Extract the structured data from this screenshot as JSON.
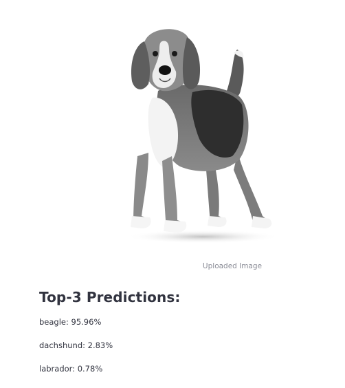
{
  "uploaded_image": {
    "subject": "beagle-dog-photo",
    "caption": "Uploaded Image"
  },
  "predictions": {
    "heading": "Top-3 Predictions:",
    "items": [
      {
        "text": "beagle: 95.96%"
      },
      {
        "text": "dachshund: 2.83%"
      },
      {
        "text": "labrador: 0.78%"
      }
    ]
  }
}
